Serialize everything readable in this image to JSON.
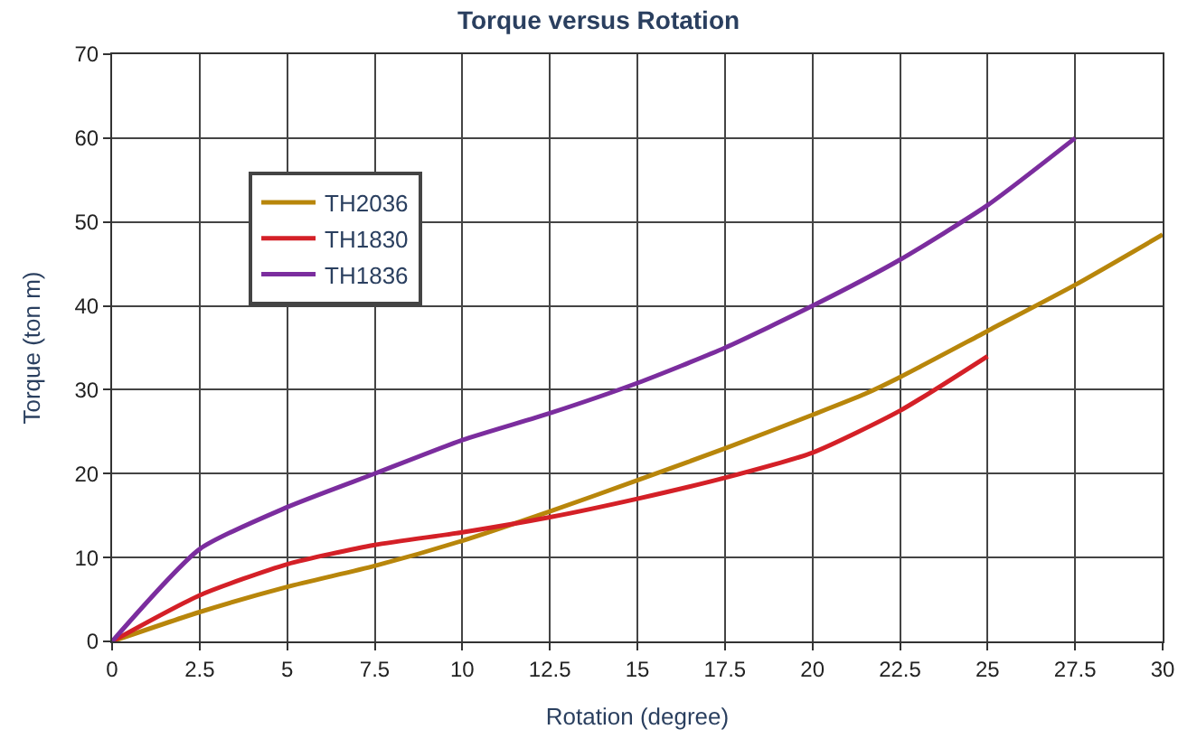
{
  "chart_data": {
    "type": "line",
    "title": "Torque versus Rotation",
    "xlabel": "Rotation (degree)",
    "ylabel": "Torque (ton m)",
    "xlim": [
      0,
      30
    ],
    "xticks": [
      0,
      2.5,
      5,
      7.5,
      10,
      12.5,
      15,
      17.5,
      20,
      22.5,
      25,
      27.5,
      30
    ],
    "ylim": [
      0,
      70
    ],
    "yticks": [
      0,
      10,
      20,
      30,
      40,
      50,
      60,
      70
    ],
    "grid": true,
    "legend": "top left",
    "marker": "none",
    "line_style": "solid",
    "series": [
      {
        "name": "TH2036",
        "color": "#b8860b",
        "x": [
          0,
          2.5,
          5,
          7.5,
          10,
          12.5,
          15,
          17.5,
          20,
          21.5,
          22.5,
          25,
          27.5,
          30
        ],
        "values": [
          0,
          3.5,
          6.5,
          9,
          12,
          15.5,
          19.2,
          23,
          27,
          29.5,
          31.5,
          37,
          42.5,
          48.5
        ]
      },
      {
        "name": "TH1830",
        "color": "#d42027",
        "x": [
          0,
          2.5,
          5,
          7.5,
          10,
          12.5,
          15,
          17.5,
          20,
          22.5,
          25
        ],
        "values": [
          0,
          5.5,
          9.2,
          11.5,
          13,
          14.8,
          17,
          19.5,
          22.5,
          27.5,
          34
        ]
      },
      {
        "name": "TH1836",
        "color": "#7b2d9e",
        "x": [
          0,
          2.5,
          5,
          7.5,
          10,
          12.5,
          15,
          17.5,
          20,
          22.5,
          25,
          27.5
        ],
        "values": [
          0,
          11,
          16,
          20,
          24,
          27.2,
          30.8,
          35,
          40,
          45.5,
          52,
          60
        ]
      }
    ]
  }
}
